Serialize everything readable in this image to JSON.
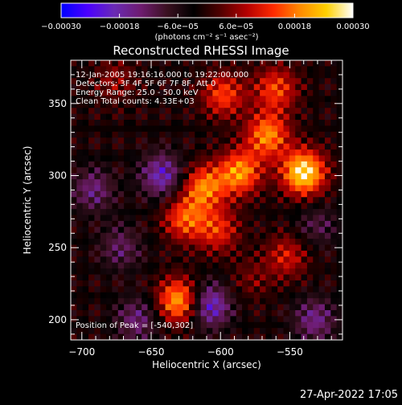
{
  "chart_data": {
    "type": "heatmap",
    "title": "Reconstructed RHESSI Image",
    "xlabel": "Heliocentric X (arcsec)",
    "ylabel": "Heliocentric Y (arcsec)",
    "xlim": [
      -708,
      -512
    ],
    "ylim": [
      186,
      380
    ],
    "xticks": [
      -700,
      -650,
      -600,
      -550
    ],
    "yticks": [
      200,
      250,
      300,
      350
    ],
    "xtick_labels": [
      "−700",
      "−650",
      "−600",
      "−550"
    ],
    "ytick_labels": [
      "200",
      "250",
      "300",
      "350"
    ],
    "info_lines": [
      "12-Jan-2005 19:16:16.000 to 19:22:00.000",
      "Detectors: 3F 4F 5F 6F 7F 8F, Att 0",
      "Energy Range: 25.0 - 50.0 keV",
      "Clean     Total counts: 4.33E+03"
    ],
    "peak_label": "Position of Peak = [-540,302]",
    "peak_position": [
      -540,
      302
    ],
    "colorbar": {
      "range": [
        -0.0003,
        0.0003
      ],
      "ticks": [
        -0.0003,
        -0.00018,
        -6e-05,
        6e-05,
        0.00018,
        0.0003
      ],
      "tick_labels": [
        "−0.00030",
        "−0.00018",
        "−6.0e−05",
        "6.0e−05",
        "0.00018",
        "0.00030"
      ],
      "unit_label": "(photons cm⁻² s⁻¹ asec⁻²)",
      "colormap": [
        "#0000ff",
        "#4b00ff",
        "#6a2ab5",
        "#6e1c70",
        "#3a1020",
        "#000000",
        "#500000",
        "#b40000",
        "#ff2a00",
        "#ff8a00",
        "#ffd000",
        "#ffffff"
      ]
    },
    "sources": [
      {
        "x": -540,
        "y": 302,
        "value": 0.0003
      },
      {
        "x": -566,
        "y": 328,
        "value": 0.00021
      },
      {
        "x": -586,
        "y": 302,
        "value": 0.00022
      },
      {
        "x": -612,
        "y": 292,
        "value": 0.0002
      },
      {
        "x": -626,
        "y": 270,
        "value": 0.00017
      },
      {
        "x": -598,
        "y": 356,
        "value": 0.00016
      },
      {
        "x": -560,
        "y": 360,
        "value": 0.00016
      },
      {
        "x": -630,
        "y": 213,
        "value": 0.00024
      },
      {
        "x": -602,
        "y": 262,
        "value": 0.00014
      },
      {
        "x": -552,
        "y": 244,
        "value": 0.00012
      },
      {
        "x": -676,
        "y": 366,
        "value": 8e-05
      },
      {
        "x": -578,
        "y": 228,
        "value": 6e-05
      },
      {
        "x": -660,
        "y": 200,
        "value": -0.00012
      },
      {
        "x": -608,
        "y": 210,
        "value": -0.00019
      },
      {
        "x": -642,
        "y": 300,
        "value": -0.00017
      },
      {
        "x": -692,
        "y": 290,
        "value": -0.00012
      },
      {
        "x": -532,
        "y": 200,
        "value": -0.00013
      },
      {
        "x": -672,
        "y": 250,
        "value": -0.0001
      },
      {
        "x": -530,
        "y": 265,
        "value": -8e-05
      }
    ]
  },
  "footer": {
    "timestamp": "27-Apr-2022 17:05"
  }
}
